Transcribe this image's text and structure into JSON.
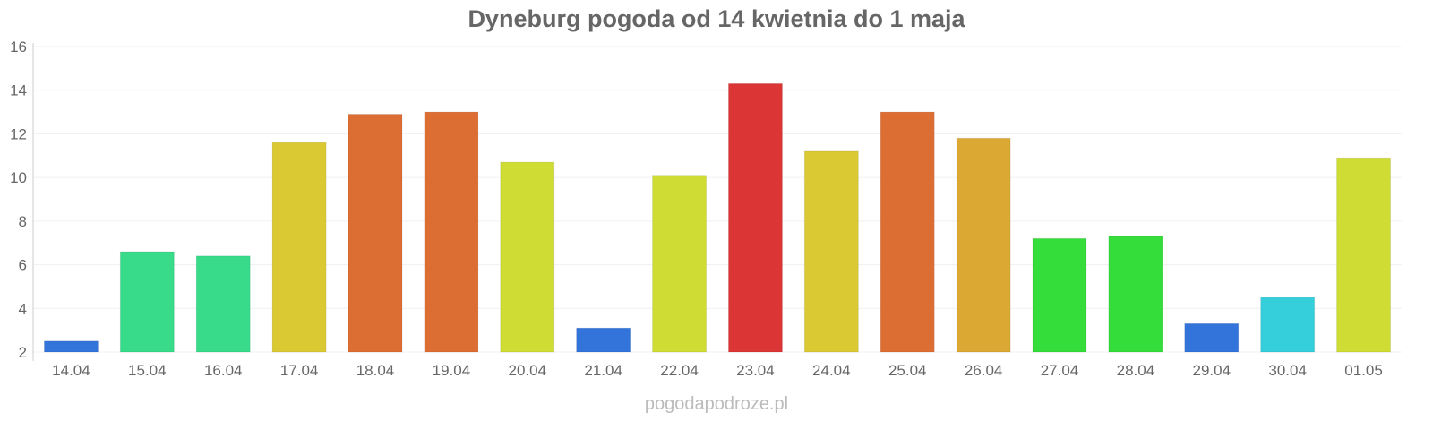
{
  "chart_data": {
    "type": "bar",
    "title": "Dyneburg pogoda od 14 kwietnia do 1 maja",
    "xlabel": "",
    "ylabel": "",
    "ylim": [
      2,
      16
    ],
    "yticks": [
      2,
      4,
      6,
      8,
      10,
      12,
      14,
      16
    ],
    "grid": true,
    "categories": [
      "14.04",
      "15.04",
      "16.04",
      "17.04",
      "18.04",
      "19.04",
      "20.04",
      "21.04",
      "22.04",
      "23.04",
      "24.04",
      "25.04",
      "26.04",
      "27.04",
      "28.04",
      "29.04",
      "30.04",
      "01.05"
    ],
    "values": [
      2.5,
      6.6,
      6.4,
      11.6,
      12.9,
      13.0,
      10.7,
      3.1,
      10.1,
      14.3,
      11.2,
      13.0,
      11.8,
      7.2,
      7.3,
      3.3,
      4.5,
      10.9
    ],
    "colors": [
      "#3374db",
      "#37db8a",
      "#37db8a",
      "#dbc934",
      "#dd6e33",
      "#dd6e33",
      "#cfdc33",
      "#3374db",
      "#cfdc33",
      "#db3535",
      "#dbc934",
      "#dd6e33",
      "#dba933",
      "#35dd3a",
      "#35dd3a",
      "#3374db",
      "#35cedb",
      "#cfdc33"
    ]
  },
  "credit": "pogodapodroze.pl"
}
